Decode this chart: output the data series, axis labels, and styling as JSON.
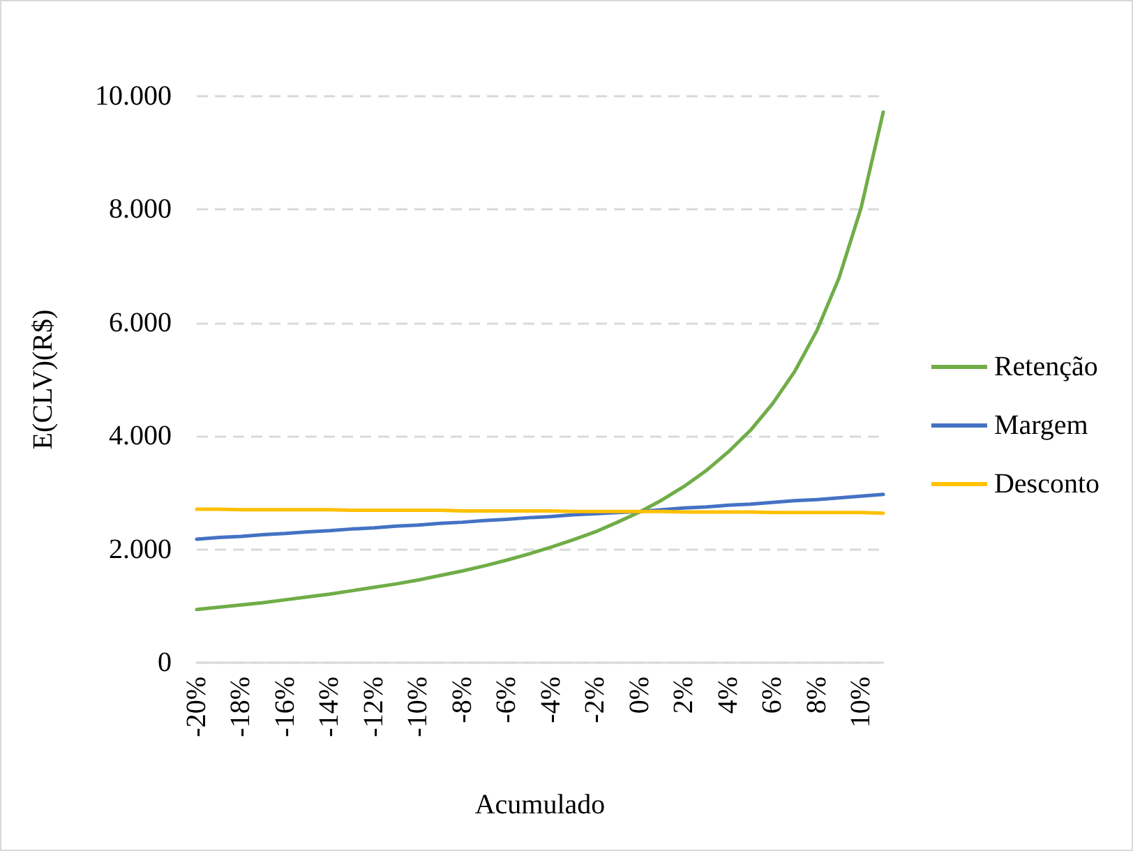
{
  "chart_data": {
    "type": "line",
    "xlabel": "Acumulado",
    "ylabel": "E(CLV)(R$)",
    "categories": [
      "-20%",
      null,
      "-18%",
      null,
      "-16%",
      null,
      "-14%",
      null,
      "-12%",
      null,
      "-10%",
      null,
      "-8%",
      null,
      "-6%",
      null,
      "-4%",
      null,
      "-2%",
      null,
      "0%",
      null,
      "2%",
      null,
      "4%",
      null,
      "6%",
      null,
      "8%",
      null,
      "10%",
      null
    ],
    "series": [
      {
        "name": "Retenção",
        "color": "#70ad47",
        "values": [
          940,
          980,
          1020,
          1060,
          1110,
          1160,
          1210,
          1270,
          1330,
          1390,
          1460,
          1540,
          1620,
          1710,
          1810,
          1920,
          2040,
          2170,
          2310,
          2480,
          2660,
          2870,
          3110,
          3390,
          3720,
          4100,
          4570,
          5140,
          5860,
          6790,
          8030,
          9720
        ]
      },
      {
        "name": "Margem",
        "color": "#4472c4",
        "values": [
          2180,
          2210,
          2230,
          2260,
          2280,
          2310,
          2330,
          2360,
          2380,
          2410,
          2430,
          2460,
          2480,
          2510,
          2530,
          2560,
          2580,
          2610,
          2630,
          2650,
          2670,
          2700,
          2730,
          2750,
          2780,
          2800,
          2830,
          2860,
          2880,
          2910,
          2940,
          2970
        ]
      },
      {
        "name": "Desconto",
        "color": "#ffc000",
        "values": [
          2710,
          2710,
          2700,
          2700,
          2700,
          2700,
          2700,
          2690,
          2690,
          2690,
          2690,
          2690,
          2680,
          2680,
          2680,
          2680,
          2680,
          2670,
          2670,
          2670,
          2670,
          2670,
          2660,
          2660,
          2660,
          2660,
          2650,
          2650,
          2650,
          2650,
          2650,
          2640
        ]
      }
    ],
    "ylim": [
      0,
      10000
    ],
    "yticks": [
      0,
      {
        "value": 2000,
        "label": "2.000"
      },
      {
        "value": 4000,
        "label": "4.000"
      },
      {
        "value": 6000,
        "label": "6.000"
      },
      {
        "value": 8000,
        "label": "8.000"
      },
      {
        "value": 10000,
        "label": "10.000"
      }
    ],
    "grid": "y",
    "legend": "right",
    "marker": "none",
    "line_style": "solid"
  }
}
